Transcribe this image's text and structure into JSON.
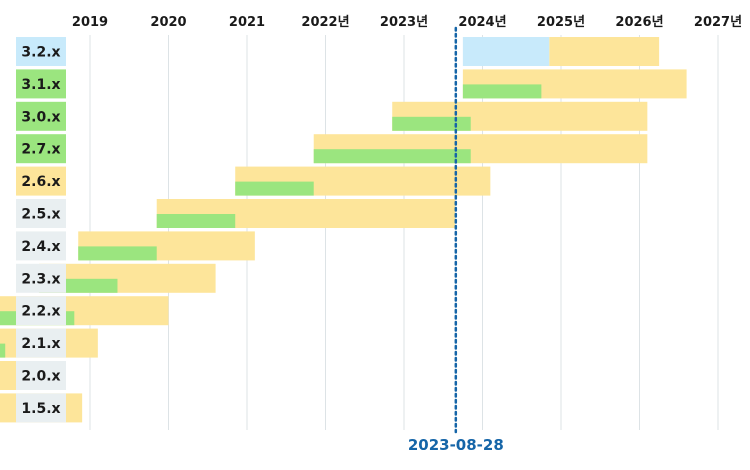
{
  "chart_data": {
    "type": "gantt",
    "x_axis": {
      "ticks": [
        "2019",
        "2020",
        "2021",
        "2022년",
        "2023년",
        "2024년",
        "2025년",
        "2026년",
        "2027년"
      ]
    },
    "today": {
      "label": "2023-08-28",
      "date": 2023.66,
      "color": "#1565a8"
    },
    "colors": {
      "support": "#fde59a",
      "active": "#9be57f",
      "preview": "#c8eafb",
      "label_current": "#9be57f",
      "label_supported": "#fde59a",
      "label_preview": "#c8eafb",
      "label_eol": "#e9eff1",
      "grid": "#dde3e6"
    },
    "versions": [
      {
        "label": "3.2.x",
        "status": "preview",
        "preview": [
          2023.75,
          2024.85
        ],
        "support": [
          2024.85,
          2026.25
        ]
      },
      {
        "label": "3.1.x",
        "status": "current",
        "active": [
          2023.75,
          2024.75
        ],
        "support": [
          2023.75,
          2026.6
        ]
      },
      {
        "label": "3.0.x",
        "status": "current",
        "active": [
          2022.85,
          2023.85
        ],
        "support": [
          2022.85,
          2026.1
        ]
      },
      {
        "label": "2.7.x",
        "status": "current",
        "active": [
          2021.85,
          2023.85
        ],
        "support": [
          2021.85,
          2026.1
        ]
      },
      {
        "label": "2.6.x",
        "status": "supported",
        "active": [
          2020.85,
          2021.85
        ],
        "support": [
          2020.85,
          2024.1
        ]
      },
      {
        "label": "2.5.x",
        "status": "eol",
        "active": [
          2019.85,
          2020.85
        ],
        "support": [
          2019.85,
          2023.65
        ]
      },
      {
        "label": "2.4.x",
        "status": "eol",
        "active": [
          2018.85,
          2019.85
        ],
        "support": [
          2018.85,
          2021.1
        ]
      },
      {
        "label": "2.3.x",
        "status": "eol",
        "active": [
          2018.35,
          2019.35
        ],
        "support": [
          2018.35,
          2020.6
        ]
      },
      {
        "label": "2.2.x",
        "status": "eol",
        "active": [
          2017.8,
          2018.8
        ],
        "support": [
          2017.8,
          2020.0
        ]
      },
      {
        "label": "2.1.x",
        "status": "eol",
        "active": [
          2017.1,
          2017.92
        ],
        "support": [
          2017.1,
          2019.1
        ]
      },
      {
        "label": "2.0.x",
        "status": "eol",
        "active": [
          2017.1,
          2017.25
        ],
        "support": [
          2017.1,
          2018.5
        ]
      },
      {
        "label": "1.5.x",
        "status": "eol",
        "active": [
          2017.1,
          2017.65
        ],
        "support": [
          2017.1,
          2018.9
        ]
      }
    ]
  }
}
